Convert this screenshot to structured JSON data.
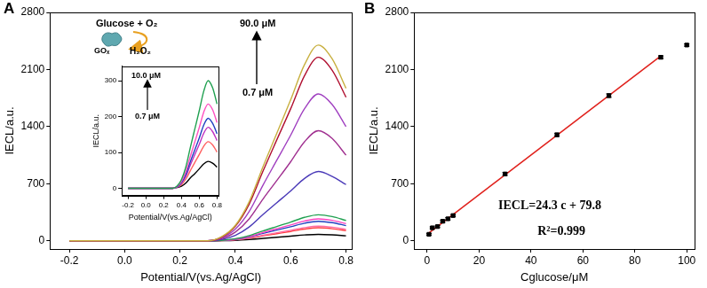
{
  "chart_data": [
    {
      "type": "line",
      "title": "A",
      "x_label": "Potential/V(vs.Ag/AgCl)",
      "y_label": "IECL/a.u.",
      "xlim": [
        -0.27,
        0.82
      ],
      "xticks": [
        -0.2,
        {
          "value": 0,
          "label": "0.0"
        },
        0.2,
        0.4,
        0.6,
        0.8
      ],
      "ylim": [
        -100,
        2800
      ],
      "yticks": [
        0,
        700,
        1400,
        2100,
        2800
      ],
      "grid": false,
      "annotations": [
        "Glucose + O₂",
        "GOₓ",
        "H₂O₂",
        "90.0 μM",
        "0.7 μM"
      ],
      "x": [
        -0.2,
        0.3,
        0.35,
        0.4,
        0.45,
        0.5,
        0.55,
        0.6,
        0.65,
        0.7,
        0.75,
        0.8
      ],
      "series": [
        {
          "color": "#c8b040",
          "values": [
            0,
            0,
            50,
            190,
            480,
            910,
            1320,
            1730,
            2160,
            2400,
            2230,
            1870
          ]
        },
        {
          "color": "#b01030",
          "values": [
            0,
            0,
            45,
            180,
            450,
            855,
            1240,
            1620,
            2025,
            2250,
            2090,
            1760
          ]
        },
        {
          "color": "#a040c0",
          "values": [
            0,
            0,
            36,
            144,
            360,
            684,
            990,
            1296,
            1620,
            1800,
            1670,
            1400
          ]
        },
        {
          "color": "#a03090",
          "values": [
            0,
            0,
            27,
            108,
            270,
            513,
            740,
            970,
            1215,
            1350,
            1255,
            1050
          ]
        },
        {
          "color": "#4a3ab8",
          "values": [
            0,
            0,
            17,
            68,
            170,
            323,
            468,
            612,
            765,
            850,
            790,
            690
          ]
        },
        {
          "color": "#20a050",
          "values": [
            0,
            0,
            6,
            26,
            64,
            122,
            176,
            230,
            288,
            320,
            298,
            250
          ]
        },
        {
          "color": "#ff40c0",
          "values": [
            0,
            0,
            5,
            22,
            54,
            103,
            149,
            194,
            243,
            270,
            251,
            211
          ]
        },
        {
          "color": "#2040c0",
          "values": [
            0,
            0,
            5,
            19,
            48,
            91,
            132,
            173,
            216,
            240,
            223,
            187
          ]
        },
        {
          "color": "#ff6aa0",
          "values": [
            0,
            0,
            4,
            14,
            36,
            68,
            99,
            130,
            162,
            180,
            167,
            140
          ]
        },
        {
          "color": "#ff4040",
          "values": [
            0,
            0,
            3,
            13,
            32,
            61,
            88,
            115,
            144,
            160,
            149,
            125
          ]
        },
        {
          "color": "#000000",
          "values": [
            0,
            0,
            2,
            6,
            16,
            30,
            44,
            58,
            72,
            80,
            74,
            62
          ]
        }
      ]
    },
    {
      "type": "line",
      "x_label": "Potential/V(vs.Ag/AgCl)",
      "y_label": "IECL/a.u.",
      "xlim": [
        -0.27,
        0.82
      ],
      "xticks": [
        -0.2,
        {
          "value": 0,
          "label": "0.0"
        },
        0.2,
        0.4,
        0.6,
        0.8
      ],
      "ylim": [
        -20,
        340
      ],
      "yticks": [
        0,
        100,
        200,
        300
      ],
      "grid": false,
      "annotations": [
        "10.0 μM",
        "0.7 μM"
      ],
      "x": [
        -0.2,
        0.3,
        0.35,
        0.4,
        0.45,
        0.5,
        0.55,
        0.6,
        0.65,
        0.7,
        0.75,
        0.8
      ],
      "series": [
        {
          "color": "#20a050",
          "values": [
            0,
            0,
            6,
            24,
            60,
            114,
            165,
            216,
            270,
            300,
            280,
            235
          ]
        },
        {
          "color": "#ff50c0",
          "values": [
            0,
            0,
            5,
            19,
            47,
            89,
            129,
            169,
            212,
            235,
            219,
            183
          ]
        },
        {
          "color": "#2040c0",
          "values": [
            0,
            0,
            4,
            16,
            39,
            74,
            107,
            140,
            176,
            195,
            181,
            152
          ]
        },
        {
          "color": "#c030c0",
          "values": [
            0,
            0,
            3,
            14,
            34,
            65,
            94,
            122,
            153,
            170,
            158,
            133
          ]
        },
        {
          "color": "#ff6060",
          "values": [
            0,
            0,
            3,
            10,
            26,
            49,
            72,
            94,
            117,
            130,
            121,
            101
          ]
        },
        {
          "color": "#000000",
          "values": [
            0,
            0,
            2,
            6,
            15,
            29,
            41,
            54,
            68,
            75,
            70,
            59
          ]
        }
      ]
    },
    {
      "type": "scatter",
      "title": "B",
      "x_label": "Cglucose/μM",
      "y_label": "IECL/a.u.",
      "xlim": [
        -5,
        103
      ],
      "xticks": [
        0,
        20,
        40,
        60,
        80,
        100
      ],
      "ylim": [
        -100,
        2800
      ],
      "yticks": [
        0,
        700,
        1400,
        2100,
        2800
      ],
      "grid": false,
      "marker": "square",
      "color": "#000000",
      "x": [
        0.7,
        2,
        4,
        6,
        8,
        10,
        30,
        50,
        70,
        90,
        100
      ],
      "values": [
        80,
        160,
        175,
        240,
        270,
        310,
        820,
        1300,
        1780,
        2250,
        2400
      ],
      "errors": [
        10,
        12,
        12,
        14,
        14,
        14,
        18,
        20,
        22,
        18,
        14
      ],
      "fit": {
        "x": [
          0.7,
          90
        ],
        "values": [
          97,
          2267
        ],
        "color": "#e0201b"
      },
      "annotations": [
        "IECL=24.3 c + 79.8",
        "R²=0.999"
      ]
    }
  ]
}
